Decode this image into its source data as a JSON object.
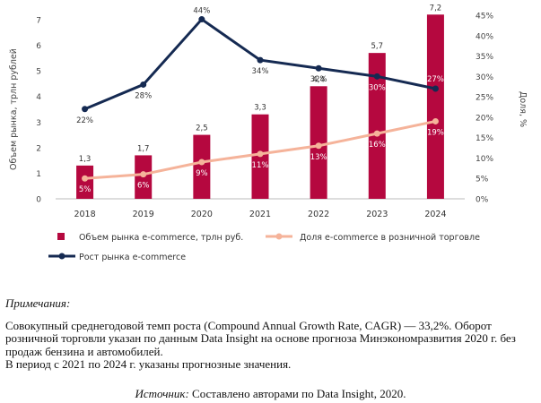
{
  "chart_data": {
    "type": "bar+line",
    "categories": [
      "2018",
      "2019",
      "2020",
      "2021",
      "2022",
      "2023",
      "2024"
    ],
    "y_left_label": "Объем рынка, трлн рублей",
    "y_right_label": "Доля, %",
    "y_left_range": [
      0,
      7
    ],
    "y_left_ticks": [
      "0",
      "1",
      "2",
      "3",
      "4",
      "5",
      "6",
      "7"
    ],
    "y_right_range": [
      0,
      45
    ],
    "y_right_ticks": [
      "0%",
      "5%",
      "10%",
      "15%",
      "20%",
      "25%",
      "30%",
      "35%",
      "40%",
      "45%"
    ],
    "series": [
      {
        "name": "Объем рынка e-commerce, трлн руб.",
        "type": "bar",
        "axis": "left",
        "color": "#b5083f",
        "values": [
          1.3,
          1.7,
          2.5,
          3.3,
          4.4,
          5.7,
          7.2
        ],
        "labels": [
          "1,3",
          "1,7",
          "2,5",
          "3,3",
          "4,4",
          "5,7",
          "7,2"
        ]
      },
      {
        "name": "Доля e-commerce в розничной торговле",
        "type": "line",
        "axis": "right",
        "color": "#f5b39a",
        "values": [
          5,
          6,
          9,
          11,
          13,
          16,
          19
        ],
        "labels": [
          "5%",
          "6%",
          "9%",
          "11%",
          "13%",
          "16%",
          "19%"
        ]
      },
      {
        "name": "Рост рынка e-commerce",
        "type": "line",
        "axis": "right",
        "color": "#152a52",
        "values": [
          22,
          28,
          44,
          34,
          32,
          30,
          27
        ],
        "labels": [
          "22%",
          "28%",
          "44%",
          "34%",
          "32%",
          "30%",
          "27%"
        ]
      }
    ],
    "grid": false,
    "legend_position": "bottom"
  },
  "notes": {
    "title": "Примечания:",
    "line1": "Совокупный среднегодовой темп роста (Compound Annual Growth Rate, CAGR) — 33,2%. Оборот розничной торговли указан по данным Data Insight на основе прогноза Минэкономразвития 2020 г. без продаж бензина и автомобилей.",
    "line2": "В период с 2021 по 2024 г. указаны прогнозные значения."
  },
  "source": {
    "label": "Источник:",
    "text": " Составлено авторами по Data Insight, 2020."
  }
}
